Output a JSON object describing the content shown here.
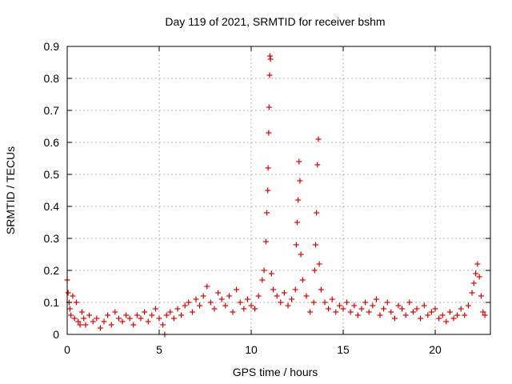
{
  "chart_data": {
    "type": "scatter",
    "title": "Day 119 of 2021, SRMTID for receiver bshm",
    "xlabel": "GPS time / hours",
    "ylabel": "SRMTID / TECUs",
    "xlim": [
      0,
      23
    ],
    "ylim": [
      0,
      0.9
    ],
    "xticks": [
      0,
      5,
      10,
      15,
      20
    ],
    "xtick_labels": [
      "0",
      "5",
      "10",
      "15",
      "20"
    ],
    "yticks": [
      0,
      0.1,
      0.2,
      0.3,
      0.4,
      0.5,
      0.6,
      0.7,
      0.8,
      0.9
    ],
    "ytick_labels": [
      "0",
      "0.1",
      "0.2",
      "0.3",
      "0.4",
      "0.5",
      "0.6",
      "0.7",
      "0.8",
      "0.9"
    ],
    "grid": true,
    "marker": "+",
    "color": "#e00000",
    "series": [
      {
        "name": "SRMTID",
        "x": [
          0.0,
          0.05,
          0.1,
          0.15,
          0.2,
          0.3,
          0.4,
          0.5,
          0.6,
          0.7,
          0.8,
          0.9,
          1.0,
          1.2,
          1.4,
          1.6,
          1.8,
          2.0,
          2.2,
          2.4,
          2.6,
          2.8,
          3.0,
          3.2,
          3.4,
          3.6,
          3.8,
          4.0,
          4.2,
          4.4,
          4.6,
          4.8,
          5.0,
          5.2,
          5.4,
          5.6,
          5.8,
          6.0,
          6.2,
          6.4,
          6.6,
          6.8,
          7.0,
          7.2,
          7.4,
          7.6,
          7.8,
          8.0,
          8.2,
          8.4,
          8.6,
          8.8,
          9.0,
          9.2,
          9.4,
          9.6,
          9.8,
          10.0,
          10.2,
          10.4,
          10.6,
          10.7,
          10.8,
          10.85,
          10.9,
          10.92,
          10.95,
          10.97,
          11.0,
          11.02,
          11.05,
          11.1,
          11.2,
          11.4,
          11.6,
          11.8,
          12.0,
          12.2,
          12.4,
          12.45,
          12.5,
          12.55,
          12.6,
          12.65,
          12.7,
          12.8,
          13.0,
          13.2,
          13.4,
          13.45,
          13.5,
          13.55,
          13.6,
          13.65,
          13.7,
          13.8,
          14.0,
          14.2,
          14.4,
          14.6,
          14.8,
          15.0,
          15.2,
          15.4,
          15.6,
          15.8,
          16.0,
          16.2,
          16.4,
          16.6,
          16.8,
          17.0,
          17.2,
          17.4,
          17.6,
          17.8,
          18.0,
          18.2,
          18.4,
          18.6,
          18.8,
          19.0,
          19.2,
          19.4,
          19.6,
          19.8,
          20.0,
          20.2,
          20.4,
          20.6,
          20.8,
          21.0,
          21.2,
          21.4,
          21.6,
          21.8,
          22.0,
          22.1,
          22.2,
          22.3,
          22.4,
          22.5,
          22.6,
          22.7,
          5.3
        ],
        "y": [
          0.17,
          0.13,
          0.1,
          0.08,
          0.06,
          0.12,
          0.05,
          0.1,
          0.04,
          0.03,
          0.07,
          0.05,
          0.03,
          0.06,
          0.04,
          0.05,
          0.02,
          0.04,
          0.06,
          0.03,
          0.07,
          0.05,
          0.04,
          0.06,
          0.05,
          0.03,
          0.06,
          0.05,
          0.07,
          0.04,
          0.06,
          0.08,
          0.05,
          0.03,
          0.06,
          0.07,
          0.05,
          0.08,
          0.06,
          0.09,
          0.1,
          0.07,
          0.11,
          0.09,
          0.12,
          0.15,
          0.1,
          0.08,
          0.13,
          0.11,
          0.09,
          0.12,
          0.07,
          0.14,
          0.1,
          0.08,
          0.11,
          0.09,
          0.08,
          0.12,
          0.17,
          0.2,
          0.29,
          0.38,
          0.45,
          0.52,
          0.63,
          0.71,
          0.81,
          0.87,
          0.86,
          0.19,
          0.14,
          0.12,
          0.1,
          0.13,
          0.09,
          0.11,
          0.14,
          0.28,
          0.35,
          0.42,
          0.54,
          0.48,
          0.25,
          0.17,
          0.12,
          0.07,
          0.1,
          0.2,
          0.28,
          0.38,
          0.53,
          0.61,
          0.22,
          0.14,
          0.1,
          0.08,
          0.11,
          0.07,
          0.09,
          0.08,
          0.1,
          0.07,
          0.09,
          0.06,
          0.08,
          0.1,
          0.07,
          0.09,
          0.11,
          0.06,
          0.08,
          0.1,
          0.07,
          0.05,
          0.09,
          0.08,
          0.06,
          0.1,
          0.07,
          0.08,
          0.05,
          0.09,
          0.06,
          0.07,
          0.08,
          0.05,
          0.06,
          0.04,
          0.07,
          0.05,
          0.06,
          0.08,
          0.06,
          0.09,
          0.13,
          0.16,
          0.19,
          0.22,
          0.18,
          0.12,
          0.07,
          0.06,
          0.0
        ]
      }
    ]
  }
}
